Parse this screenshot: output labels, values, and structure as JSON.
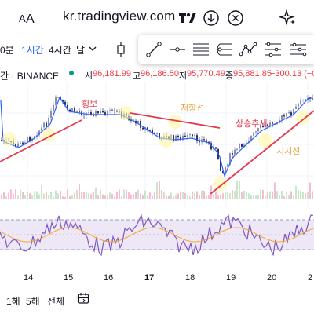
{
  "browser": {
    "url": "kr.tradingview.com"
  },
  "toolbar": {
    "timeframes": [
      "0분",
      "1시간",
      "4시간",
      "날"
    ],
    "active_timeframe": "1시간"
  },
  "legend": {
    "symbol": "간 · BINANCE",
    "open_label": "시",
    "open_value": "96,181.99",
    "high_label": "고",
    "high_value": "96,186.50",
    "low_label": "저",
    "low_value": "95,770.49",
    "close_label": "종",
    "close_value": "95,881.85",
    "change": "−300.13 (−0.",
    "colors": {
      "down": "#f23645",
      "up": "#089981",
      "text": "#131722"
    }
  },
  "annotations": {
    "consolidation": "횡보",
    "resistance": "저항선",
    "uptrend": "상승추세",
    "support": "지지선"
  },
  "x_axis": {
    "labels": [
      "14",
      "15",
      "16",
      "17",
      "18",
      "19",
      "20",
      "2"
    ]
  },
  "bottom_bar": {
    "ranges": [
      "1해",
      "5해",
      "전체"
    ]
  },
  "colors": {
    "accent": "#2962ff",
    "trendline": "#e53950",
    "ma_line": "#2962ff",
    "rsi_line": "#7e57c2",
    "rsi_bg": "#ede7f6"
  }
}
